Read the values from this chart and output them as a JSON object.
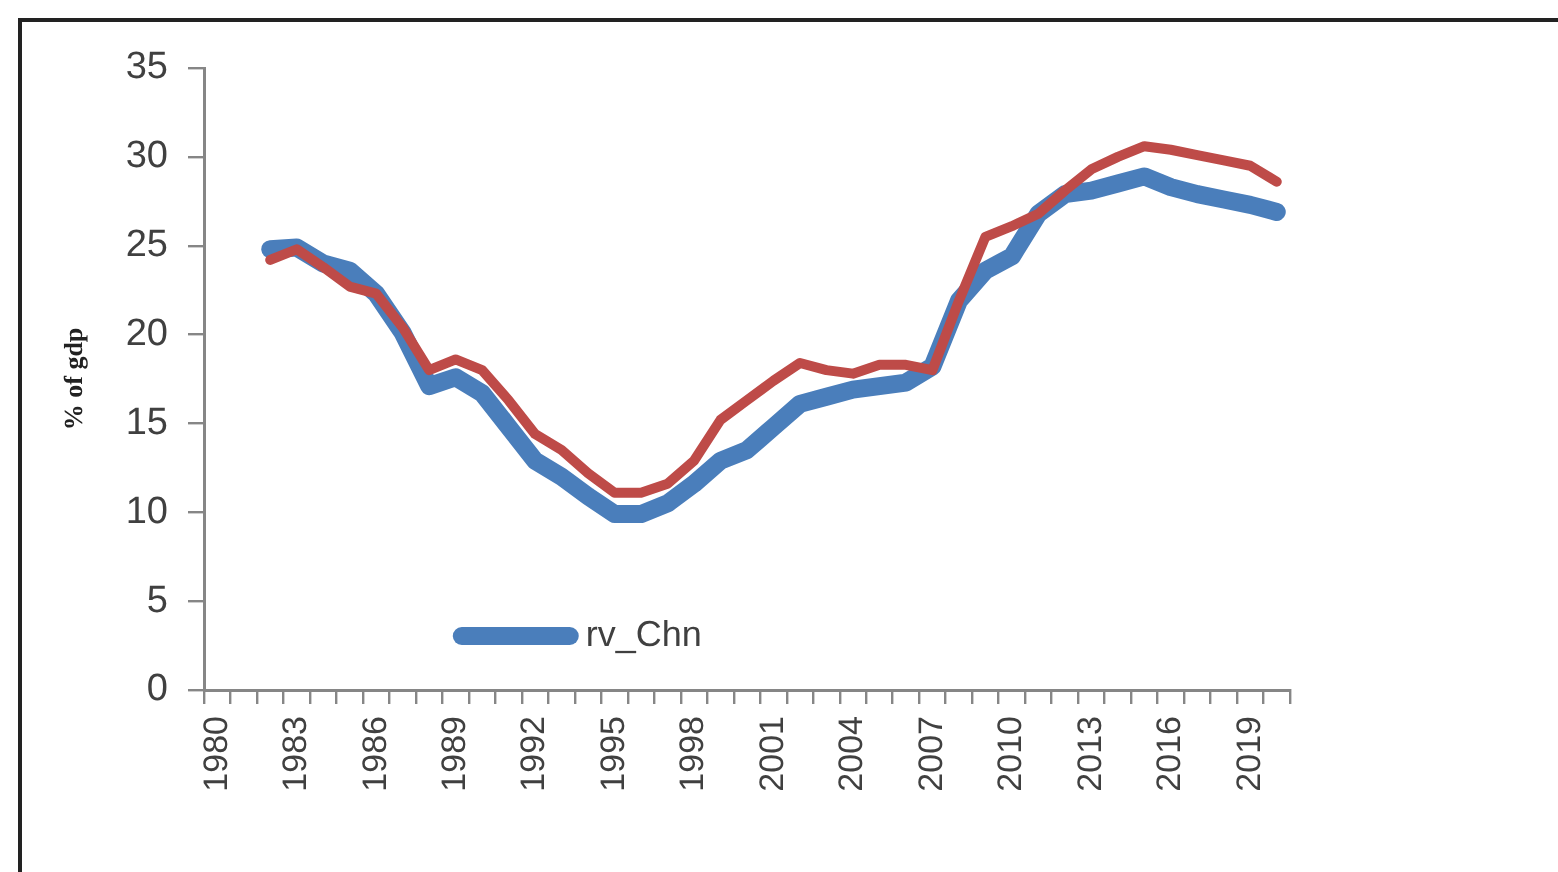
{
  "chart_data": {
    "type": "line",
    "ylabel": "% of gdp",
    "categories": [
      "1980",
      null,
      null,
      "1983",
      null,
      null,
      "1986",
      null,
      null,
      "1989",
      null,
      null,
      "1992",
      null,
      null,
      "1995",
      null,
      null,
      "1998",
      null,
      null,
      "2001",
      null,
      null,
      "2004",
      null,
      null,
      "2007",
      null,
      null,
      "2010",
      null,
      null,
      "2013",
      null,
      null,
      "2016",
      null,
      null,
      "2019",
      null
    ],
    "ylim": [
      0,
      35
    ],
    "yticks": [
      0,
      5,
      10,
      15,
      20,
      25,
      30,
      35
    ],
    "legend": "bottom left",
    "marker": "none",
    "series": [
      {
        "name": "rv_Chn",
        "color": "#4a7ebb",
        "values": [
          null,
          null,
          24.8,
          24.9,
          24.0,
          23.6,
          22.3,
          20.1,
          17.1,
          17.6,
          16.7,
          14.8,
          12.9,
          12.0,
          10.9,
          9.9,
          9.9,
          10.5,
          11.6,
          12.9,
          13.5,
          14.8,
          16.1,
          16.5,
          16.9,
          17.1,
          17.3,
          18.2,
          21.9,
          23.6,
          24.4,
          26.8,
          27.9,
          28.1,
          28.5,
          28.9,
          28.3,
          27.9,
          27.6,
          27.3,
          26.9
        ]
      },
      {
        "color": "#be4b48",
        "values": [
          null,
          null,
          24.2,
          24.8,
          23.8,
          22.7,
          22.3,
          20.4,
          18.0,
          18.6,
          18.0,
          16.3,
          14.4,
          13.5,
          12.2,
          11.1,
          11.1,
          11.6,
          12.9,
          15.2,
          16.3,
          17.4,
          18.4,
          18.0,
          17.8,
          18.3,
          18.3,
          18.0,
          21.9,
          25.5,
          26.1,
          26.8,
          28.1,
          29.3,
          30.0,
          30.6,
          30.4,
          30.1,
          29.8,
          29.5,
          28.6
        ]
      }
    ]
  }
}
